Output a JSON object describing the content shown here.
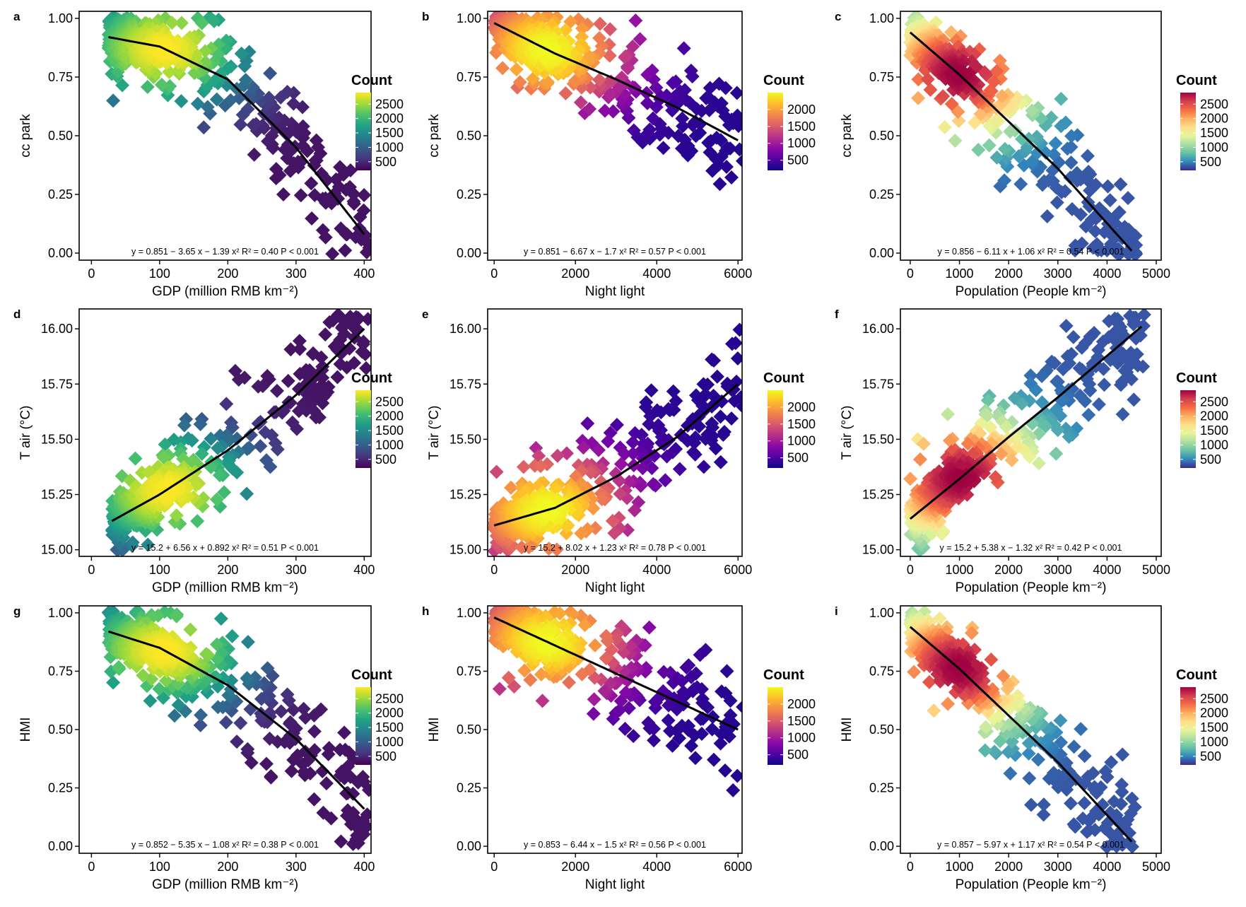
{
  "chart_data": [
    {
      "panel": "a",
      "type": "scatter",
      "ylabel": "cc park",
      "xlabel": "GDP (million RMB km⁻²)",
      "xlim": [
        -18,
        410
      ],
      "xticks": [
        0,
        100,
        200,
        300,
        400
      ],
      "ylim": [
        -0.03,
        1.03
      ],
      "yticks": [
        "0.00",
        "0.25",
        "0.50",
        "0.75",
        "1.00"
      ],
      "palette": "viridis",
      "legend_title": "Count",
      "legend_ticks": [
        "2500",
        "2000",
        "1500",
        "1000",
        "500"
      ],
      "legend_values": [
        2500,
        2000,
        1500,
        1000,
        500
      ],
      "legend_range": [
        200,
        2900
      ],
      "fit": {
        "x": [
          25,
          100,
          200,
          300,
          400
        ],
        "y": [
          0.92,
          0.88,
          0.74,
          0.45,
          0.08
        ]
      },
      "equation": "y = 0.851 − 3.65 x − 1.39 x²   R² = 0.40   P < 0.001",
      "equation_dx": 0
    },
    {
      "panel": "b",
      "type": "scatter",
      "ylabel": "cc park",
      "xlabel": "Night light",
      "xlim": [
        -160,
        6100
      ],
      "xticks": [
        0,
        2000,
        4000,
        6000
      ],
      "ylim": [
        -0.03,
        1.03
      ],
      "yticks": [
        "0.00",
        "0.25",
        "0.50",
        "0.75",
        "1.00"
      ],
      "palette": "plasma",
      "legend_title": "Count",
      "legend_ticks": [
        "2000",
        "1500",
        "1000",
        "500"
      ],
      "legend_values": [
        2000,
        1500,
        1000,
        500
      ],
      "legend_range": [
        200,
        2500
      ],
      "fit": {
        "x": [
          0,
          1500,
          3000,
          4500,
          6000
        ],
        "y": [
          0.98,
          0.85,
          0.74,
          0.62,
          0.48
        ]
      },
      "equation": "y = 0.851 − 6.67 x − 1.7 x²   R² = 0.57   P < 0.001",
      "equation_dx": 0
    },
    {
      "panel": "c",
      "type": "scatter",
      "ylabel": "cc park",
      "xlabel": "Population (People km⁻²)",
      "xlim": [
        -200,
        5100
      ],
      "xticks": [
        0,
        1000,
        2000,
        3000,
        4000,
        5000
      ],
      "ylim": [
        -0.03,
        1.03
      ],
      "yticks": [
        "0.00",
        "0.25",
        "0.50",
        "0.75",
        "1.00"
      ],
      "palette": "spectral",
      "legend_title": "Count",
      "legend_ticks": [
        "2500",
        "2000",
        "1500",
        "1000",
        "500"
      ],
      "legend_values": [
        2500,
        2000,
        1500,
        1000,
        500
      ],
      "legend_range": [
        200,
        2900
      ],
      "fit": {
        "x": [
          0,
          1000,
          2000,
          3000,
          4500
        ],
        "y": [
          0.94,
          0.76,
          0.56,
          0.36,
          0.01
        ]
      },
      "equation": "y = 0.856 − 6.11 x + 1.06 x²   R² = 0.54   P < 0.001",
      "equation_dx": 0
    },
    {
      "panel": "d",
      "type": "scatter",
      "ylabel": "T air (°C)",
      "xlabel": "GDP (million RMB km⁻²)",
      "xlim": [
        -18,
        410
      ],
      "xticks": [
        0,
        100,
        200,
        300,
        400
      ],
      "ylim": [
        14.97,
        16.09
      ],
      "yticks": [
        "15.00",
        "15.25",
        "15.50",
        "15.75",
        "16.00"
      ],
      "palette": "viridis",
      "legend_title": "Count",
      "legend_ticks": [
        "2500",
        "2000",
        "1500",
        "1000",
        "500"
      ],
      "legend_values": [
        2500,
        2000,
        1500,
        1000,
        500
      ],
      "legend_range": [
        200,
        2900
      ],
      "fit": {
        "x": [
          30,
          100,
          200,
          300,
          400
        ],
        "y": [
          15.13,
          15.25,
          15.45,
          15.7,
          16.0
        ]
      },
      "equation": "y = 15.2 + 6.56 x + 0.892 x²   R² = 0.51   P < 0.001",
      "equation_dx": 0
    },
    {
      "panel": "e",
      "type": "scatter",
      "ylabel": "T air (°C)",
      "xlabel": "Night light",
      "xlim": [
        -160,
        6100
      ],
      "xticks": [
        0,
        2000,
        4000,
        6000
      ],
      "ylim": [
        14.97,
        16.09
      ],
      "yticks": [
        "15.00",
        "15.25",
        "15.50",
        "15.75",
        "16.00"
      ],
      "palette": "plasma",
      "legend_title": "Count",
      "legend_ticks": [
        "2000",
        "1500",
        "1000",
        "500"
      ],
      "legend_values": [
        2000,
        1500,
        1000,
        500
      ],
      "legend_range": [
        200,
        2500
      ],
      "fit": {
        "x": [
          0,
          1500,
          3000,
          4500,
          6000
        ],
        "y": [
          15.11,
          15.19,
          15.33,
          15.51,
          15.75
        ]
      },
      "equation": "y = 15.2 + 8.02 x + 1.23 x²   R² = 0.78   P < 0.001",
      "equation_dx": 0
    },
    {
      "panel": "f",
      "type": "scatter",
      "ylabel": "T air (°C)",
      "xlabel": "Population (People km⁻²)",
      "xlim": [
        -200,
        5100
      ],
      "xticks": [
        0,
        1000,
        2000,
        3000,
        4000,
        5000
      ],
      "ylim": [
        14.97,
        16.09
      ],
      "yticks": [
        "15.00",
        "15.25",
        "15.50",
        "15.75",
        "16.00"
      ],
      "palette": "spectral",
      "legend_title": "Count",
      "legend_ticks": [
        "2500",
        "2000",
        "1500",
        "1000",
        "500"
      ],
      "legend_values": [
        2500,
        2000,
        1500,
        1000,
        500
      ],
      "legend_range": [
        200,
        2900
      ],
      "fit": {
        "x": [
          0,
          1000,
          2000,
          3000,
          4700
        ],
        "y": [
          15.14,
          15.32,
          15.51,
          15.69,
          16.01
        ]
      },
      "equation": "y = 15.2 + 5.38 x − 1.32 x²   R² = 0.42   P < 0.001",
      "equation_dx": 0
    },
    {
      "panel": "g",
      "type": "scatter",
      "ylabel": "HMI",
      "xlabel": "GDP (million RMB km⁻²)",
      "xlim": [
        -18,
        410
      ],
      "xticks": [
        0,
        100,
        200,
        300,
        400
      ],
      "ylim": [
        -0.03,
        1.03
      ],
      "yticks": [
        "0.00",
        "0.25",
        "0.50",
        "0.75",
        "1.00"
      ],
      "palette": "viridis",
      "legend_title": "Count",
      "legend_ticks": [
        "2500",
        "2000",
        "1500",
        "1000",
        "500"
      ],
      "legend_values": [
        2500,
        2000,
        1500,
        1000,
        500
      ],
      "legend_range": [
        200,
        2900
      ],
      "fit": {
        "x": [
          25,
          100,
          200,
          300,
          400
        ],
        "y": [
          0.92,
          0.85,
          0.69,
          0.46,
          0.16
        ]
      },
      "equation": "y = 0.852 − 5.35 x − 1.08 x²   R² = 0.38   P < 0.001",
      "equation_dx": 0
    },
    {
      "panel": "h",
      "type": "scatter",
      "ylabel": "HMI",
      "xlabel": "Night light",
      "xlim": [
        -160,
        6100
      ],
      "xticks": [
        0,
        2000,
        4000,
        6000
      ],
      "ylim": [
        -0.03,
        1.03
      ],
      "yticks": [
        "0.00",
        "0.25",
        "0.50",
        "0.75",
        "1.00"
      ],
      "palette": "plasma",
      "legend_title": "Count",
      "legend_ticks": [
        "2000",
        "1500",
        "1000",
        "500"
      ],
      "legend_values": [
        2000,
        1500,
        1000,
        500
      ],
      "legend_range": [
        200,
        2500
      ],
      "fit": {
        "x": [
          0,
          1500,
          3000,
          4500,
          6000
        ],
        "y": [
          0.98,
          0.86,
          0.74,
          0.62,
          0.5
        ]
      },
      "equation": "y = 0.853 − 6.44 x − 1.5 x²   R² = 0.56   P < 0.001",
      "equation_dx": 0
    },
    {
      "panel": "i",
      "type": "scatter",
      "ylabel": "HMI",
      "xlabel": "Population (People km⁻²)",
      "xlim": [
        -200,
        5100
      ],
      "xticks": [
        0,
        1000,
        2000,
        3000,
        4000,
        5000
      ],
      "ylim": [
        -0.03,
        1.03
      ],
      "yticks": [
        "0.00",
        "0.25",
        "0.50",
        "0.75",
        "1.00"
      ],
      "palette": "spectral",
      "legend_title": "Count",
      "legend_ticks": [
        "2500",
        "2000",
        "1500",
        "1000",
        "500"
      ],
      "legend_values": [
        2500,
        2000,
        1500,
        1000,
        500
      ],
      "legend_range": [
        200,
        2900
      ],
      "fit": {
        "x": [
          0,
          1000,
          2000,
          3000,
          4500
        ],
        "y": [
          0.94,
          0.76,
          0.56,
          0.36,
          0.02
        ]
      },
      "equation": "y = 0.857 − 5.97 x + 1.17 x²   R² = 0.54   P < 0.001",
      "equation_dx": 0
    }
  ],
  "palettes": {
    "viridis": [
      "#440154",
      "#46337e",
      "#365c8d",
      "#277f8e",
      "#1fa187",
      "#4ac16d",
      "#a0da39",
      "#fde725"
    ],
    "plasma": [
      "#0d0887",
      "#5302a3",
      "#8b0aa5",
      "#b83289",
      "#db5c68",
      "#f48849",
      "#febd2a",
      "#f0f921"
    ],
    "spectral": [
      "#3b2b8f",
      "#3288bd",
      "#66c2a5",
      "#abdda4",
      "#e6f598",
      "#fee08b",
      "#fdae61",
      "#f46d43",
      "#d53e4f",
      "#9e0142"
    ]
  }
}
